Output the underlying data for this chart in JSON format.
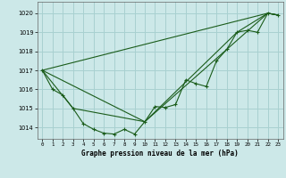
{
  "title": "Graphe pression niveau de la mer (hPa)",
  "bg_color": "#cce8e8",
  "grid_color": "#a8d0d0",
  "line_color": "#1a5c1a",
  "xlim": [
    -0.5,
    23.5
  ],
  "ylim": [
    1013.4,
    1020.6
  ],
  "yticks": [
    1014,
    1015,
    1016,
    1017,
    1018,
    1019,
    1020
  ],
  "xticks": [
    0,
    1,
    2,
    3,
    4,
    5,
    6,
    7,
    8,
    9,
    10,
    11,
    12,
    13,
    14,
    15,
    16,
    17,
    18,
    19,
    20,
    21,
    22,
    23
  ],
  "series1_x": [
    0,
    1,
    2,
    3,
    4,
    5,
    6,
    7,
    8,
    9,
    10,
    11,
    12,
    13,
    14,
    15,
    16,
    17,
    18,
    19,
    20,
    21,
    22,
    23
  ],
  "series1_y": [
    1017.0,
    1016.0,
    1015.7,
    1015.0,
    1014.2,
    1013.9,
    1013.7,
    1013.65,
    1013.9,
    1013.65,
    1014.3,
    1015.1,
    1015.05,
    1015.2,
    1016.5,
    1016.3,
    1016.15,
    1017.5,
    1018.1,
    1019.0,
    1019.1,
    1019.0,
    1020.0,
    1019.9
  ],
  "line2_x": [
    0,
    22,
    23
  ],
  "line2_y": [
    1017.0,
    1020.0,
    1019.9
  ],
  "line3_x": [
    0,
    10,
    22,
    23
  ],
  "line3_y": [
    1017.0,
    1014.3,
    1020.0,
    1019.9
  ],
  "line4_x": [
    0,
    3,
    10,
    19,
    22,
    23
  ],
  "line4_y": [
    1017.0,
    1015.0,
    1014.3,
    1019.0,
    1020.0,
    1019.9
  ]
}
